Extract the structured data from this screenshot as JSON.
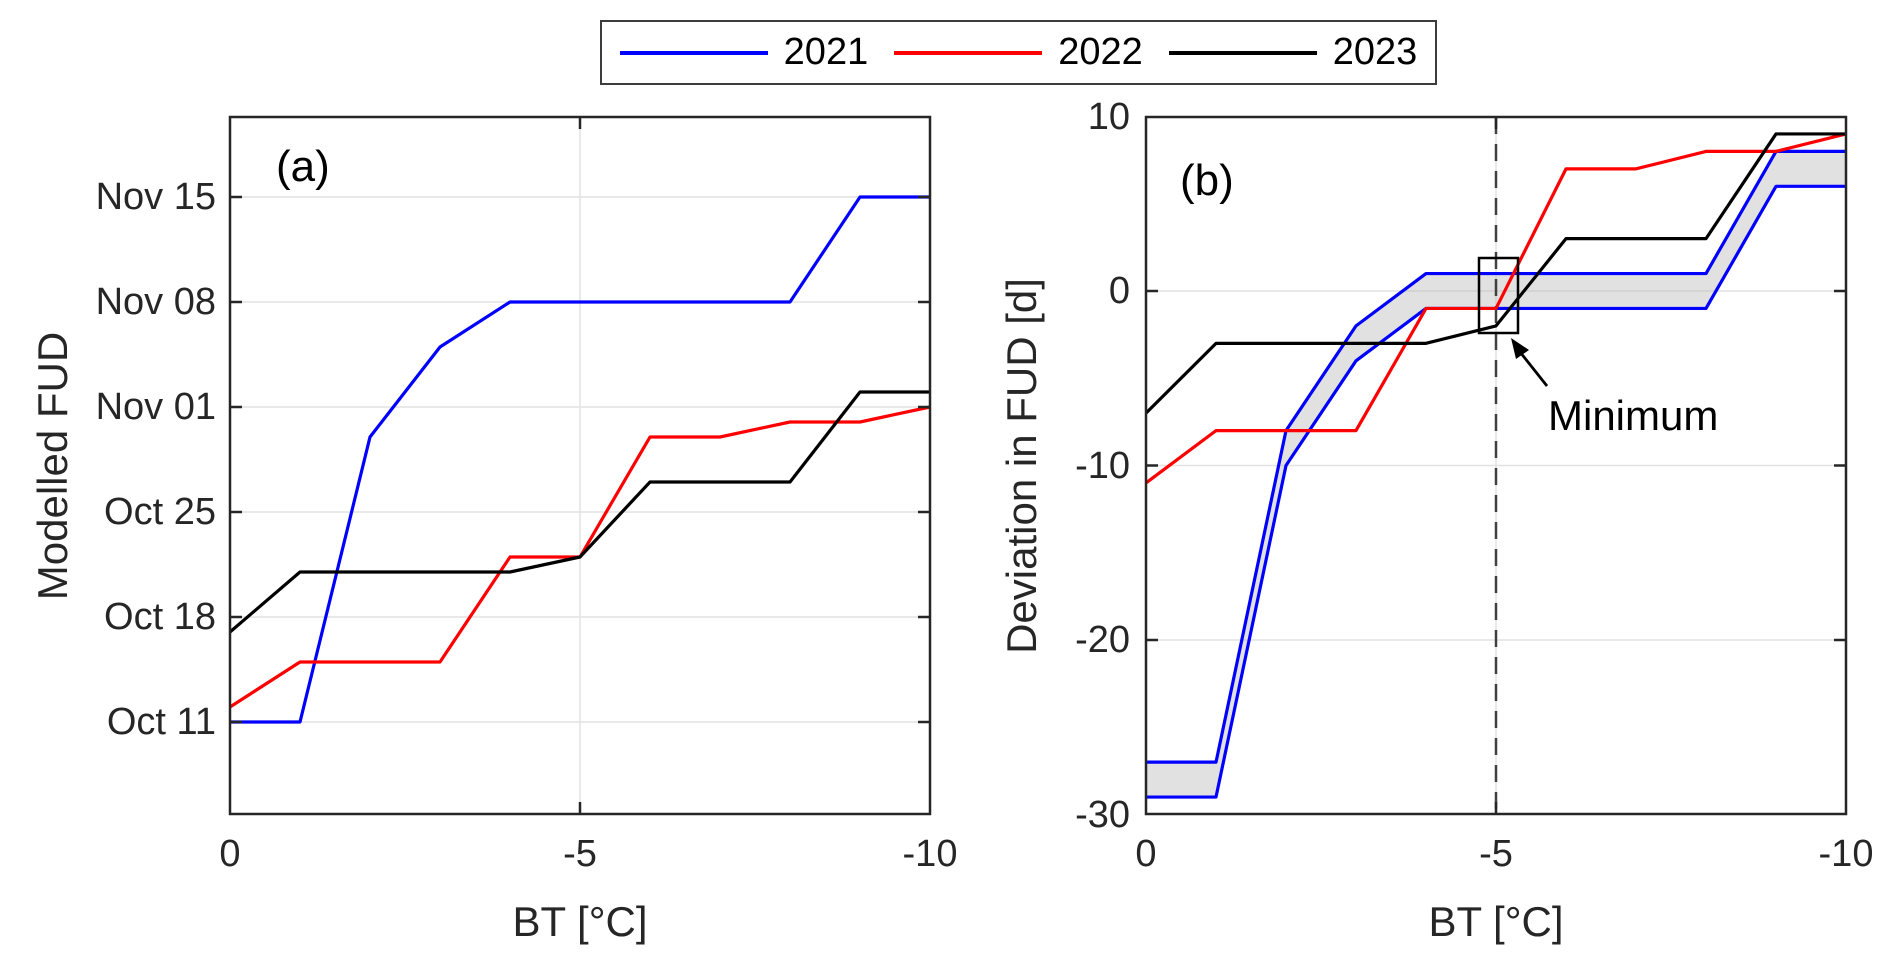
{
  "legend": {
    "items": [
      {
        "label": "2021",
        "color": "#0000ff"
      },
      {
        "label": "2022",
        "color": "#ff0000"
      },
      {
        "label": "2023",
        "color": "#000000"
      }
    ]
  },
  "panels": {
    "a": {
      "tag": "(a)",
      "xlabel": "BT [°C]",
      "ylabel": "Modelled FUD"
    },
    "b": {
      "tag": "(b)",
      "xlabel": "BT [°C]",
      "ylabel": "Deviation in FUD [d]",
      "annotation": "Minimum"
    }
  },
  "chart_data": [
    {
      "panel": "a",
      "type": "line",
      "title": "(a)",
      "xlabel": "BT [°C]",
      "ylabel": "Modelled FUD",
      "x_bt": [
        0,
        -1,
        -2,
        -3,
        -4,
        -5,
        -6,
        -7,
        -8,
        -9,
        -10
      ],
      "x_tick_values": [
        0,
        -5,
        -10
      ],
      "x_tick_labels": [
        "0",
        "-5",
        "-10"
      ],
      "y_tick_labels": [
        "Nov 15",
        "Nov 08",
        "Nov 01",
        "Oct 25",
        "Oct 18",
        "Oct 11"
      ],
      "y_tick_days_after_oct11": [
        35,
        28,
        21,
        14,
        7,
        0
      ],
      "grid": "on",
      "legend_position": "top-outside",
      "series": [
        {
          "name": "2021",
          "color": "#0000ff",
          "days_after_oct11": [
            0,
            0,
            19,
            25,
            28,
            28,
            28,
            28,
            28,
            35,
            35
          ],
          "dates": [
            "Oct 11",
            "Oct 11",
            "Oct 30",
            "Nov 05",
            "Nov 08",
            "Nov 08",
            "Nov 08",
            "Nov 08",
            "Nov 08",
            "Nov 15",
            "Nov 15"
          ]
        },
        {
          "name": "2022",
          "color": "#ff0000",
          "days_after_oct11": [
            1,
            4,
            4,
            4,
            11,
            11,
            19,
            19,
            20,
            20,
            21
          ],
          "dates": [
            "Oct 12",
            "Oct 15",
            "Oct 15",
            "Oct 15",
            "Oct 22",
            "Oct 22",
            "Oct 30",
            "Oct 30",
            "Oct 31",
            "Oct 31",
            "Nov 01"
          ]
        },
        {
          "name": "2023",
          "color": "#000000",
          "days_after_oct11": [
            6,
            10,
            10,
            10,
            10,
            11,
            16,
            16,
            16,
            22,
            22
          ],
          "dates": [
            "Oct 17",
            "Oct 21",
            "Oct 21",
            "Oct 21",
            "Oct 21",
            "Oct 22",
            "Oct 27",
            "Oct 27",
            "Oct 27",
            "Nov 02",
            "Nov 02"
          ]
        }
      ]
    },
    {
      "panel": "b",
      "type": "line",
      "title": "(b)",
      "xlabel": "BT [°C]",
      "ylabel": "Deviation in FUD [d]",
      "x_bt": [
        0,
        -1,
        -2,
        -3,
        -4,
        -5,
        -6,
        -7,
        -8,
        -9,
        -10
      ],
      "x_tick_values": [
        0,
        -5,
        -10
      ],
      "x_tick_labels": [
        "0",
        "-5",
        "-10"
      ],
      "ylim": [
        -30,
        10
      ],
      "y_tick_values": [
        10,
        0,
        -10,
        -20,
        -30
      ],
      "y_tick_labels": [
        "10",
        "0",
        "-10",
        "-20",
        "-30"
      ],
      "grid": "on",
      "series": [
        {
          "name": "2021 lower bound",
          "color": "#0000ff",
          "values": [
            -29,
            -29,
            -10,
            -4,
            -1,
            -1,
            -1,
            -1,
            -1,
            6,
            6
          ]
        },
        {
          "name": "2021 upper bound",
          "color": "#0000ff",
          "values": [
            -27,
            -27,
            -8,
            -2,
            1,
            1,
            1,
            1,
            1,
            8,
            8
          ]
        },
        {
          "name": "2022",
          "color": "#ff0000",
          "values": [
            -11,
            -8,
            -8,
            -8,
            -1,
            -1,
            7,
            7,
            8,
            8,
            9
          ]
        },
        {
          "name": "2023",
          "color": "#000000",
          "values": [
            -7,
            -3,
            -3,
            -3,
            -3,
            -2,
            3,
            3,
            3,
            9,
            9
          ]
        }
      ],
      "band": {
        "between": [
          "2021 lower bound",
          "2021 upper bound"
        ],
        "color": "#c8c8c8"
      },
      "annotations": {
        "dashed_vline_bt": -5,
        "minimum_label": "Minimum",
        "minimum_box_bt_range": [
          -4.75,
          -5.3
        ],
        "minimum_box_value_range": [
          1.9,
          -2.4
        ]
      }
    }
  ]
}
